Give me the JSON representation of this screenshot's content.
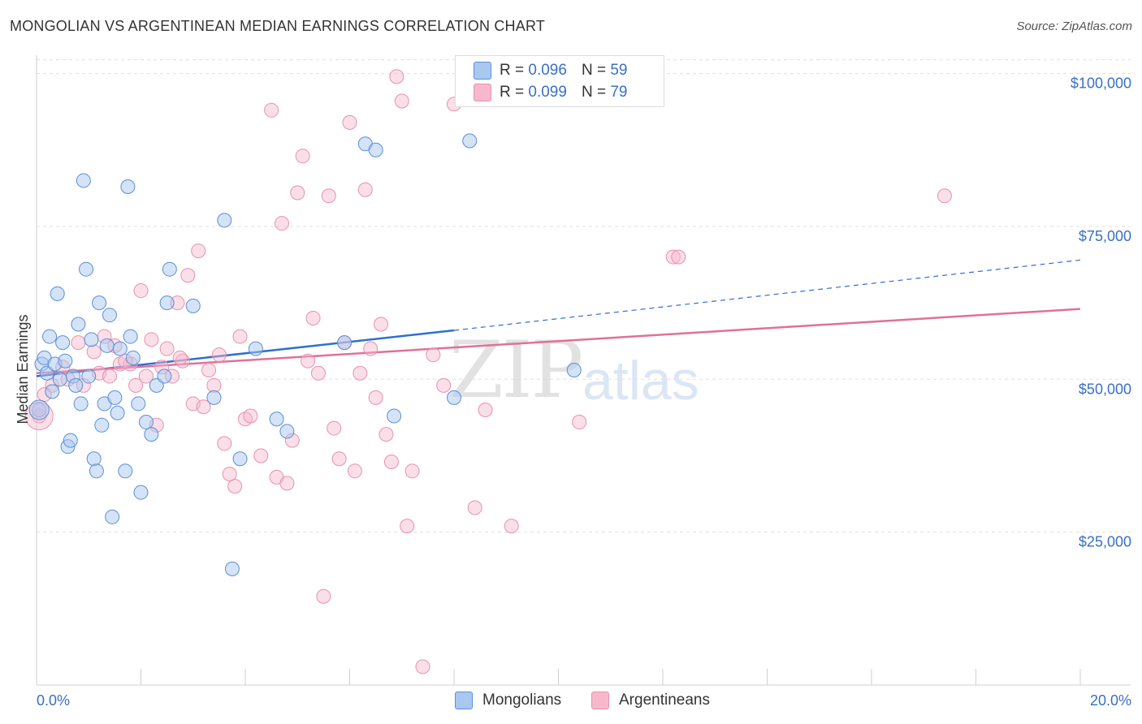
{
  "header": {
    "title": "MONGOLIAN VS ARGENTINEAN MEDIAN EARNINGS CORRELATION CHART",
    "source": "Source: ZipAtlas.com"
  },
  "watermark": {
    "zip": "ZIP",
    "atlas": "atlas"
  },
  "legend": {
    "rows": [
      {
        "r_label": "R =",
        "r_value": "0.096",
        "n_label": "N =",
        "n_value": "59",
        "color": "#a9c8f0"
      },
      {
        "r_label": "R =",
        "r_value": "0.099",
        "n_label": "N =",
        "n_value": "79",
        "color": "#f7b8cb"
      }
    ]
  },
  "bottom_legend": {
    "series1": "Mongolians",
    "series2": "Argentineans"
  },
  "colors": {
    "blue_fill": "#a9c8f0",
    "blue_stroke": "#5b8fd6",
    "blue_line": "#2f6fd0",
    "pink_fill": "#f7b8cb",
    "pink_stroke": "#e891ad",
    "pink_line": "#e0709a",
    "grid": "#e0e0e0",
    "tick_text": "#3a6fc4"
  },
  "chart_data": {
    "type": "scatter",
    "title": "MONGOLIAN VS ARGENTINEAN MEDIAN EARNINGS CORRELATION CHART",
    "xlabel": "",
    "ylabel": "Median Earnings",
    "xlim": [
      0,
      20
    ],
    "ylim": [
      0,
      103000
    ],
    "x_tick_labels": [
      "0.0%",
      "20.0%"
    ],
    "y_ticks": [
      25000,
      50000,
      75000,
      100000
    ],
    "y_tick_labels": [
      "$25,000",
      "$50,000",
      "$75,000",
      "$100,000"
    ],
    "grid": true,
    "series": [
      {
        "name": "Mongolians",
        "r": 0.096,
        "n": 59,
        "trend": {
          "x0": 0,
          "y0": 50500,
          "x1": 8,
          "y1": 58000,
          "dash_to_x": 20,
          "dash_to_y": 69500
        },
        "points": [
          [
            0.05,
            45000
          ],
          [
            0.1,
            52500
          ],
          [
            0.15,
            53500
          ],
          [
            0.2,
            51000
          ],
          [
            0.25,
            57000
          ],
          [
            0.3,
            48000
          ],
          [
            0.35,
            52500
          ],
          [
            0.4,
            64000
          ],
          [
            0.45,
            50000
          ],
          [
            0.5,
            56000
          ],
          [
            0.55,
            53000
          ],
          [
            0.6,
            39000
          ],
          [
            0.65,
            40000
          ],
          [
            0.7,
            50500
          ],
          [
            0.75,
            49000
          ],
          [
            0.8,
            59000
          ],
          [
            0.85,
            46000
          ],
          [
            0.9,
            82500
          ],
          [
            0.95,
            68000
          ],
          [
            1.0,
            50500
          ],
          [
            1.05,
            56500
          ],
          [
            1.1,
            37000
          ],
          [
            1.15,
            35000
          ],
          [
            1.2,
            62500
          ],
          [
            1.25,
            42500
          ],
          [
            1.3,
            46000
          ],
          [
            1.35,
            55500
          ],
          [
            1.4,
            60500
          ],
          [
            1.45,
            27500
          ],
          [
            1.5,
            47000
          ],
          [
            1.55,
            44500
          ],
          [
            1.6,
            55000
          ],
          [
            1.7,
            35000
          ],
          [
            1.75,
            81500
          ],
          [
            1.8,
            57000
          ],
          [
            1.85,
            53500
          ],
          [
            1.95,
            46000
          ],
          [
            2.0,
            31500
          ],
          [
            2.1,
            43000
          ],
          [
            2.2,
            41000
          ],
          [
            2.3,
            49000
          ],
          [
            2.5,
            62500
          ],
          [
            2.55,
            68000
          ],
          [
            3.0,
            62000
          ],
          [
            3.6,
            76000
          ],
          [
            3.9,
            37000
          ],
          [
            3.4,
            47000
          ],
          [
            3.75,
            19000
          ],
          [
            2.45,
            50500
          ],
          [
            4.6,
            43500
          ],
          [
            4.8,
            41500
          ],
          [
            5.9,
            56000
          ],
          [
            6.3,
            88500
          ],
          [
            6.5,
            87500
          ],
          [
            6.85,
            44000
          ],
          [
            8.0,
            47000
          ],
          [
            8.3,
            89000
          ],
          [
            4.2,
            55000
          ],
          [
            10.3,
            51500
          ]
        ]
      },
      {
        "name": "Argentineans",
        "r": 0.099,
        "n": 79,
        "trend": {
          "x0": 0,
          "y0": 51000,
          "x1": 20,
          "y1": 61500
        },
        "points": [
          [
            0.05,
            44000
          ],
          [
            0.3,
            49000
          ],
          [
            0.5,
            52000
          ],
          [
            0.8,
            56000
          ],
          [
            0.9,
            49000
          ],
          [
            1.1,
            54500
          ],
          [
            1.2,
            51000
          ],
          [
            1.3,
            57000
          ],
          [
            1.4,
            50500
          ],
          [
            1.5,
            55500
          ],
          [
            1.6,
            52500
          ],
          [
            1.8,
            52500
          ],
          [
            1.9,
            49000
          ],
          [
            2.0,
            64500
          ],
          [
            2.1,
            50500
          ],
          [
            2.2,
            56500
          ],
          [
            2.3,
            42500
          ],
          [
            2.4,
            52000
          ],
          [
            2.5,
            55000
          ],
          [
            2.6,
            50500
          ],
          [
            2.7,
            62500
          ],
          [
            2.8,
            53000
          ],
          [
            2.9,
            67000
          ],
          [
            3.0,
            46000
          ],
          [
            3.1,
            71000
          ],
          [
            3.2,
            45500
          ],
          [
            3.3,
            51500
          ],
          [
            3.4,
            49000
          ],
          [
            3.5,
            54000
          ],
          [
            3.6,
            39500
          ],
          [
            3.7,
            34500
          ],
          [
            3.8,
            32500
          ],
          [
            3.9,
            57000
          ],
          [
            4.0,
            43500
          ],
          [
            4.1,
            44000
          ],
          [
            4.3,
            37500
          ],
          [
            4.5,
            94000
          ],
          [
            4.6,
            34000
          ],
          [
            4.7,
            75500
          ],
          [
            4.8,
            33000
          ],
          [
            4.9,
            40000
          ],
          [
            5.0,
            80500
          ],
          [
            5.1,
            86500
          ],
          [
            5.2,
            53000
          ],
          [
            5.3,
            60000
          ],
          [
            5.4,
            51000
          ],
          [
            5.5,
            14500
          ],
          [
            5.6,
            80000
          ],
          [
            5.7,
            42000
          ],
          [
            5.8,
            37000
          ],
          [
            5.9,
            56000
          ],
          [
            6.0,
            92000
          ],
          [
            6.1,
            35000
          ],
          [
            6.2,
            51000
          ],
          [
            6.3,
            81000
          ],
          [
            6.4,
            55000
          ],
          [
            6.5,
            47000
          ],
          [
            6.6,
            59000
          ],
          [
            6.7,
            41000
          ],
          [
            6.8,
            36500
          ],
          [
            6.9,
            99500
          ],
          [
            7.0,
            95500
          ],
          [
            7.1,
            26000
          ],
          [
            7.2,
            35000
          ],
          [
            7.4,
            3000
          ],
          [
            7.6,
            54000
          ],
          [
            7.8,
            49000
          ],
          [
            8.0,
            95000
          ],
          [
            8.4,
            29000
          ],
          [
            8.6,
            45000
          ],
          [
            9.1,
            26000
          ],
          [
            10.4,
            43000
          ],
          [
            12.2,
            70000
          ],
          [
            12.3,
            70000
          ],
          [
            17.4,
            80000
          ],
          [
            0.15,
            47500
          ],
          [
            0.6,
            50000
          ],
          [
            1.7,
            53000
          ],
          [
            2.75,
            53500
          ]
        ]
      }
    ]
  }
}
